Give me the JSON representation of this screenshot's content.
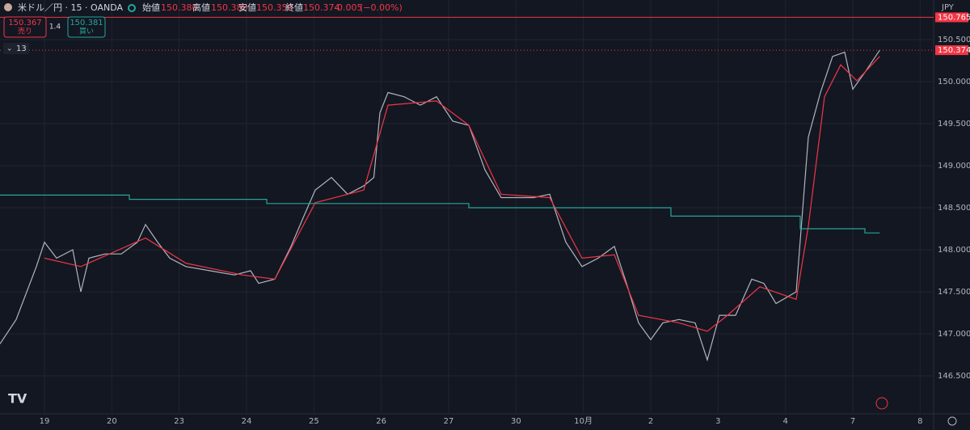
{
  "header": {
    "symbol": "米ドル／円 · 15 · OANDA",
    "open_label": "始値",
    "open": "150.380",
    "high_label": "高値",
    "high": "150.388",
    "low_label": "安値",
    "low": "150.350",
    "close_label": "終値",
    "close": "150.374",
    "change": "-0.005",
    "change_pct": "(−0.00%)",
    "sell_price": "150.367",
    "sell_label": "売り",
    "spread": "1.4",
    "buy_price": "150.381",
    "buy_label": "買い",
    "indicator_count": "13",
    "currency": "JPY"
  },
  "chart_data": {
    "type": "line",
    "grid": true,
    "xlim": [
      -0.66,
      13.2
    ],
    "xticks": [
      {
        "value": 0,
        "label": "19"
      },
      {
        "value": 1,
        "label": "20"
      },
      {
        "value": 2,
        "label": "23"
      },
      {
        "value": 3,
        "label": "24"
      },
      {
        "value": 4,
        "label": "25"
      },
      {
        "value": 5,
        "label": "26"
      },
      {
        "value": 6,
        "label": "27"
      },
      {
        "value": 7,
        "label": "30"
      },
      {
        "value": 8,
        "label": "10月"
      },
      {
        "value": 9,
        "label": "2"
      },
      {
        "value": 10,
        "label": "3"
      },
      {
        "value": 11,
        "label": "4"
      },
      {
        "value": 12,
        "label": "7"
      },
      {
        "value": 13,
        "label": "8"
      }
    ],
    "ylim": [
      146.048,
      150.971
    ],
    "yticks": [
      {
        "value": 146.5,
        "label": "146.500"
      },
      {
        "value": 147,
        "label": "147.000"
      },
      {
        "value": 147.5,
        "label": "147.500"
      },
      {
        "value": 148,
        "label": "148.000"
      },
      {
        "value": 148.5,
        "label": "148.500"
      },
      {
        "value": 149,
        "label": "149.000"
      },
      {
        "value": 149.5,
        "label": "149.500"
      },
      {
        "value": 150,
        "label": "150.000"
      },
      {
        "value": 150.5,
        "label": "150.500"
      }
    ],
    "series": [
      {
        "color": "#b2b5be",
        "x": [
          -0.66,
          -0.42,
          -0.12,
          0,
          0.18,
          0.42,
          0.54,
          0.66,
          0.9,
          1.14,
          1.38,
          1.5,
          1.68,
          1.86,
          2.1,
          2.46,
          2.82,
          3.06,
          3.18,
          3.42,
          3.66,
          3.84,
          4.02,
          4.26,
          4.5,
          4.74,
          4.89,
          4.98,
          5.1,
          5.34,
          5.58,
          5.82,
          6.06,
          6.3,
          6.54,
          6.78,
          7.02,
          7.26,
          7.5,
          7.74,
          7.98,
          8.22,
          8.46,
          8.64,
          8.82,
          9.0,
          9.18,
          9.42,
          9.66,
          9.84,
          10.02,
          10.26,
          10.5,
          10.68,
          10.86,
          11.16,
          11.34,
          11.52,
          11.7,
          11.88,
          12.0,
          12.18,
          12.4
        ],
        "values": [
          146.88,
          147.17,
          147.8,
          148.09,
          147.9,
          148.0,
          147.5,
          147.9,
          147.95,
          147.95,
          148.09,
          148.3,
          148.09,
          147.9,
          147.8,
          147.75,
          147.7,
          147.75,
          147.6,
          147.65,
          148.04,
          148.38,
          148.71,
          148.86,
          148.66,
          148.76,
          148.86,
          149.63,
          149.87,
          149.82,
          149.72,
          149.82,
          149.53,
          149.48,
          148.95,
          148.62,
          148.62,
          148.62,
          148.66,
          148.09,
          147.8,
          147.9,
          148.04,
          147.6,
          147.13,
          146.93,
          147.13,
          147.17,
          147.13,
          146.69,
          147.22,
          147.22,
          147.65,
          147.6,
          147.36,
          147.5,
          149.34,
          149.87,
          150.3,
          150.35,
          149.91,
          150.11,
          150.374
        ]
      },
      {
        "color": "#f23645",
        "x": [
          0,
          0.54,
          1.5,
          2.1,
          2.94,
          3.42,
          4.02,
          4.74,
          5.1,
          5.82,
          6.3,
          6.78,
          7.5,
          7.98,
          8.46,
          8.82,
          9.42,
          9.84,
          10.14,
          10.62,
          11.16,
          11.34,
          11.58,
          11.82,
          12.06,
          12.4
        ],
        "values": [
          147.9,
          147.8,
          148.14,
          147.84,
          147.7,
          147.65,
          148.56,
          148.71,
          149.72,
          149.77,
          149.48,
          148.66,
          148.62,
          147.9,
          147.94,
          147.22,
          147.13,
          147.03,
          147.22,
          147.56,
          147.41,
          148.28,
          149.82,
          150.2,
          150.01,
          150.3
        ]
      },
      {
        "color": "#26a69a",
        "x": [
          -0.66,
          1.26,
          1.26,
          3.3,
          3.3,
          6.3,
          6.3,
          9.3,
          9.3,
          11.22,
          11.22,
          12.18,
          12.18,
          12.4
        ],
        "values": [
          148.65,
          148.65,
          148.6,
          148.6,
          148.55,
          148.55,
          148.5,
          148.5,
          148.4,
          148.4,
          148.25,
          148.25,
          148.2,
          148.2
        ]
      }
    ],
    "price_lines": [
      {
        "value": 150.765,
        "label": "150.765",
        "color": "#f23645",
        "style": "solid"
      },
      {
        "value": 150.374,
        "label": "150.374",
        "color": "#f23645",
        "style": "dotted"
      }
    ]
  }
}
